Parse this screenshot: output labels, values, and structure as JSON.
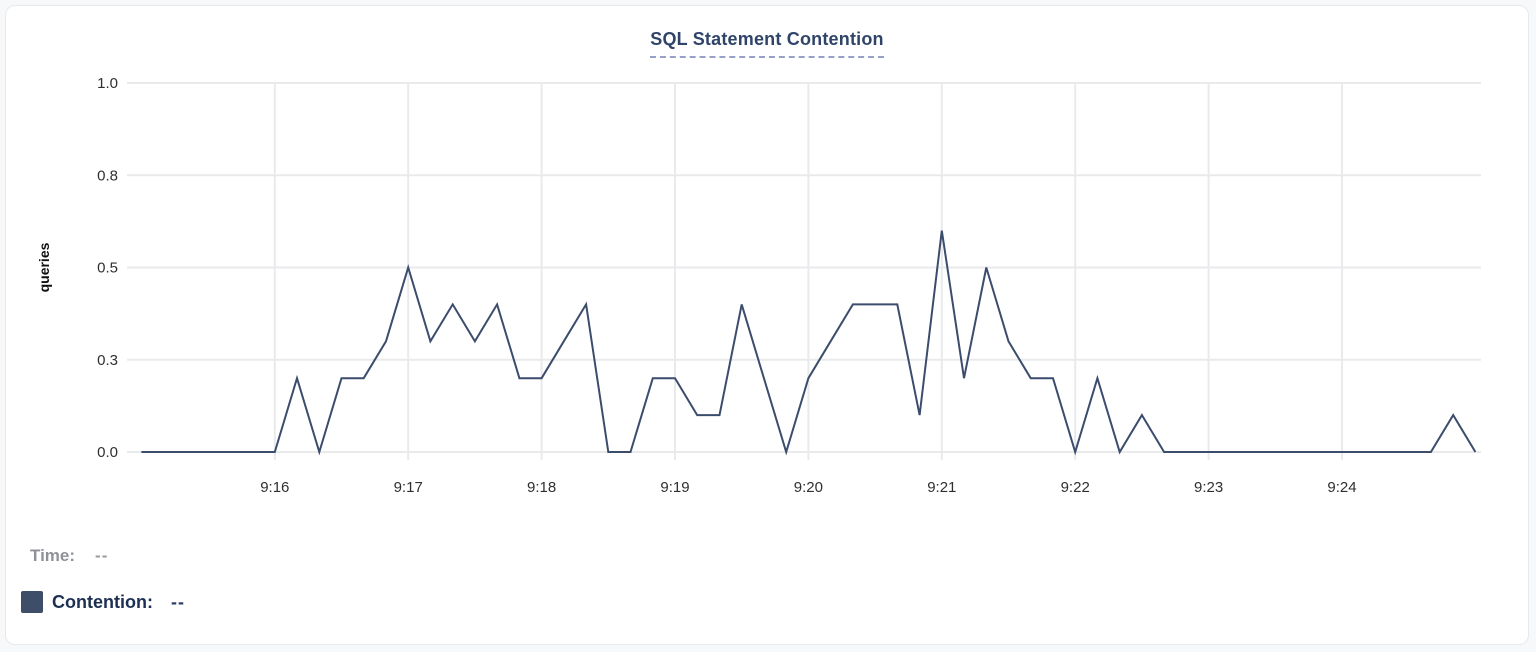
{
  "chart_data": {
    "type": "line",
    "title": "SQL Statement Contention",
    "xlabel": "",
    "ylabel": "queries",
    "ylim": [
      0,
      1.0
    ],
    "grid": true,
    "legend_position": "bottom-left",
    "line_color": "#3c4c6d",
    "y_ticks": [
      {
        "label": "0.0",
        "value": 0
      },
      {
        "label": "0.3",
        "value": 0.25
      },
      {
        "label": "0.5",
        "value": 0.5
      },
      {
        "label": "0.8",
        "value": 0.75
      },
      {
        "label": "1.0",
        "value": 1.0
      }
    ],
    "x_ticks": [
      "9:16",
      "9:17",
      "9:18",
      "9:19",
      "9:20",
      "9:21",
      "9:22",
      "9:23",
      "9:24"
    ],
    "x_range": [
      "9:15:00",
      "9:25:00"
    ],
    "sample_interval_seconds": 10,
    "series": [
      {
        "name": "Contention",
        "unit": "queries",
        "values": [
          0,
          0,
          0,
          0,
          0,
          0,
          0,
          0.2,
          0,
          0.2,
          0.2,
          0.3,
          0.5,
          0.3,
          0.4,
          0.3,
          0.4,
          0.2,
          0.2,
          0.3,
          0.4,
          0,
          0,
          0.2,
          0.2,
          0.1,
          0.1,
          0.4,
          0.2,
          0,
          0.2,
          0.3,
          0.4,
          0.4,
          0.4,
          0.1,
          0.6,
          0.2,
          0.5,
          0.3,
          0.2,
          0.2,
          0,
          0.2,
          0,
          0.1,
          0,
          0,
          0,
          0,
          0,
          0,
          0,
          0,
          0,
          0,
          0,
          0,
          0,
          0.1,
          0
        ]
      }
    ]
  },
  "legend": {
    "time_label": "Time:",
    "time_value": "--",
    "contention_label": "Contention:",
    "contention_value": "--",
    "swatch_color": "#3e4e68"
  },
  "colors": {
    "title_text": "#2f4468",
    "title_underline": "#96a0c8",
    "series_line": "#3c4c6d",
    "gridline": "#e9eaec",
    "tick_text": "#2d2f31",
    "time_label_text": "#8e9298",
    "contention_label_text": "#1d2f52",
    "card_background": "#ffffff",
    "card_border": "#e7e9eb"
  }
}
